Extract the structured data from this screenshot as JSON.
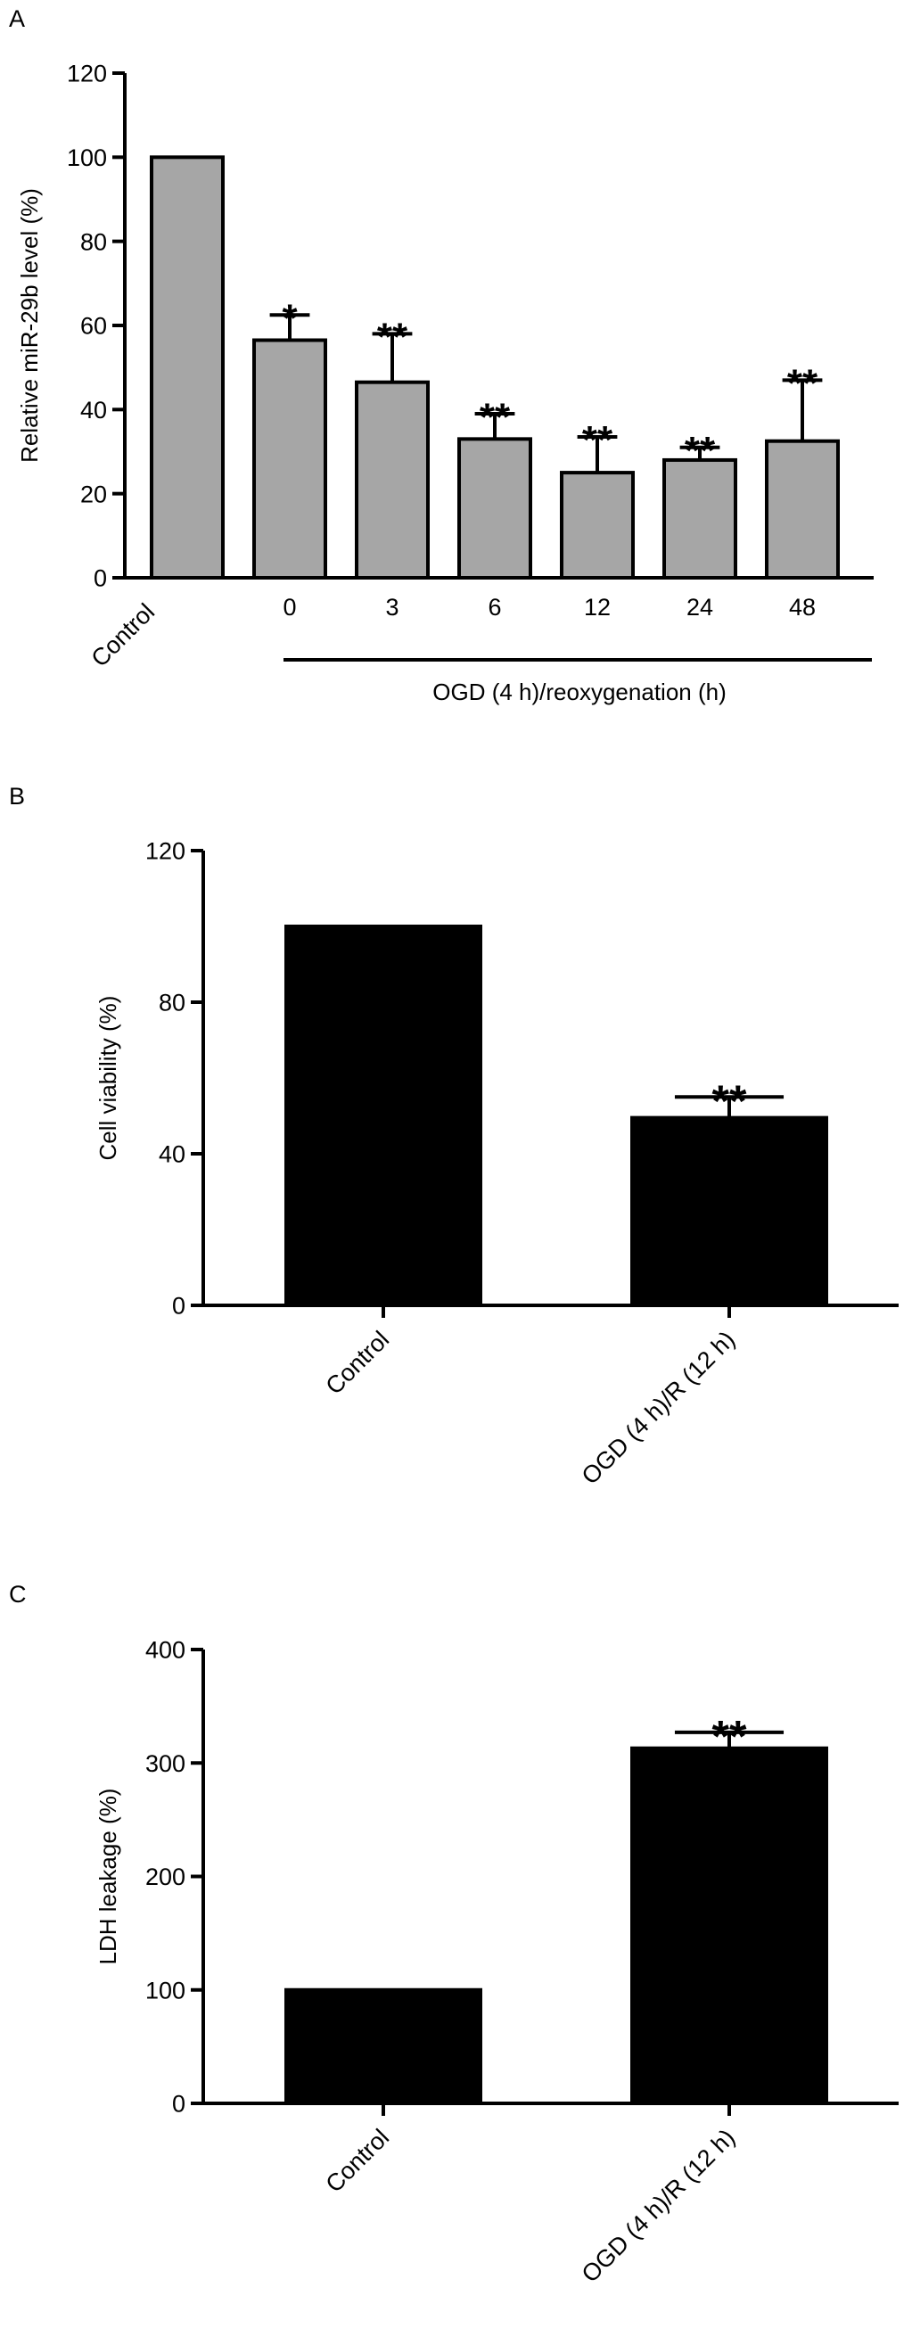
{
  "panels": [
    {
      "letter": "A",
      "chart_data": {
        "type": "bar",
        "bar_color": "#a6a6a6",
        "categories": [
          "Control",
          "0",
          "3",
          "6",
          "12",
          "24",
          "48"
        ],
        "values": [
          100,
          56.5,
          46.5,
          33,
          25,
          28,
          32.5
        ],
        "errors": [
          0,
          6,
          11.5,
          6,
          8.5,
          3,
          14.5
        ],
        "significance": [
          "",
          "*",
          "**",
          "**",
          "**",
          "**",
          "**"
        ],
        "ylabel": "Relative miR-29b level (%)",
        "ylim": [
          0,
          120
        ],
        "yticks": [
          "0",
          "20",
          "40",
          "60",
          "80",
          "100",
          "120"
        ],
        "group_label": "OGD (4 h)/reoxygenation (h)",
        "rotated_categories": [
          "Control"
        ]
      }
    },
    {
      "letter": "B",
      "chart_data": {
        "type": "bar",
        "bar_color": "#000000",
        "categories": [
          "Control",
          "OGD (4 h)/R (12 h)"
        ],
        "values": [
          100,
          49.5
        ],
        "errors": [
          0,
          5.5
        ],
        "significance": [
          "",
          "**"
        ],
        "ylabel": "Cell viability (%)",
        "ylim": [
          0,
          120
        ],
        "yticks": [
          "0",
          "40",
          "80",
          "120"
        ]
      }
    },
    {
      "letter": "C",
      "chart_data": {
        "type": "bar",
        "bar_color": "#000000",
        "categories": [
          "Control",
          "OGD (4 h)/R (12 h)"
        ],
        "values": [
          100,
          313
        ],
        "errors": [
          0,
          14
        ],
        "significance": [
          "",
          "**"
        ],
        "ylabel": "LDH leakage (%)",
        "ylim": [
          0,
          400
        ],
        "yticks": [
          "0",
          "100",
          "200",
          "300",
          "400"
        ]
      }
    }
  ]
}
